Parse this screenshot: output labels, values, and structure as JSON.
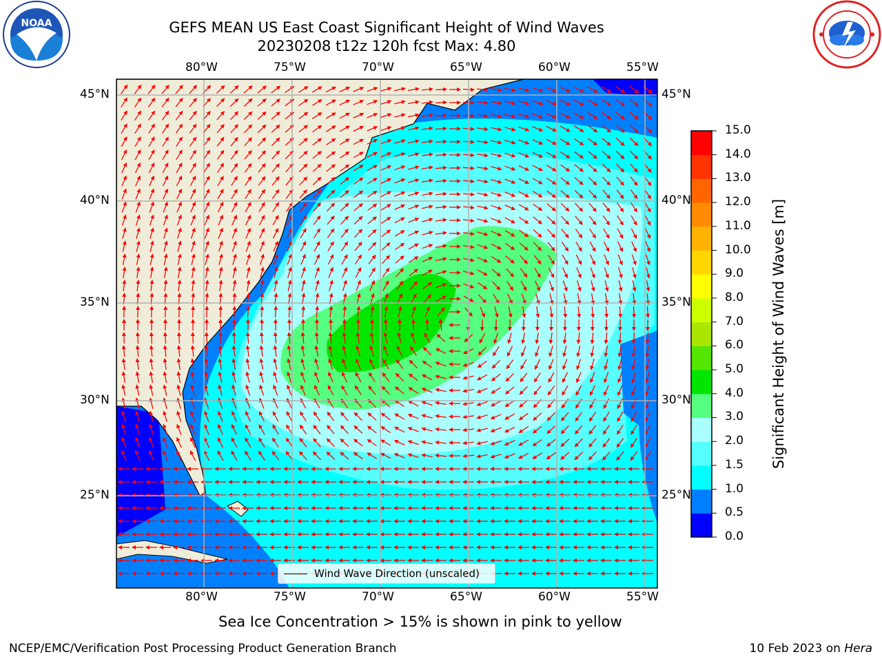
{
  "header": {
    "title_line1": "GEFS MEAN US East Coast Significant Height of Wind Waves",
    "title_line2": "20230208 t12z 120h fcst   Max: 4.80"
  },
  "logos": {
    "left": "noaa-logo",
    "left_text": "NOAA",
    "right": "nws-logo"
  },
  "axes": {
    "lon_labels": [
      "80°W",
      "75°W",
      "70°W",
      "65°W",
      "60°W",
      "55°W"
    ],
    "lat_labels": [
      "45°N",
      "40°N",
      "35°N",
      "30°N",
      "25°N"
    ]
  },
  "legend": {
    "label": "Wind Wave Direction (unscaled)"
  },
  "colorbar": {
    "label": "Significant Height of Wind Waves [m]",
    "ticks": [
      "15.0",
      "14.0",
      "13.0",
      "12.0",
      "11.0",
      "10.0",
      "9.0",
      "8.0",
      "7.0",
      "6.0",
      "5.0",
      "4.0",
      "3.0",
      "2.0",
      "1.5",
      "1.0",
      "0.5",
      "0.0"
    ],
    "colors": [
      "#0000ff",
      "#0080ff",
      "#00ffff",
      "#55ffff",
      "#aaffff",
      "#55ff80",
      "#00e600",
      "#55e600",
      "#aae600",
      "#ccff00",
      "#ffff00",
      "#ffd700",
      "#ffb300",
      "#ff8c00",
      "#ff6600",
      "#ff3300",
      "#ff0000"
    ],
    "land_color": "#efedd9",
    "arrow_color": "#ff0000"
  },
  "footer": {
    "ice_note": "Sea Ice Concentration > 15% is shown in pink to yellow",
    "org": "NCEP/EMC/Verification Post Processing Product Generation Branch",
    "date": "10 Feb 2023 on",
    "machine": "Hera"
  }
}
